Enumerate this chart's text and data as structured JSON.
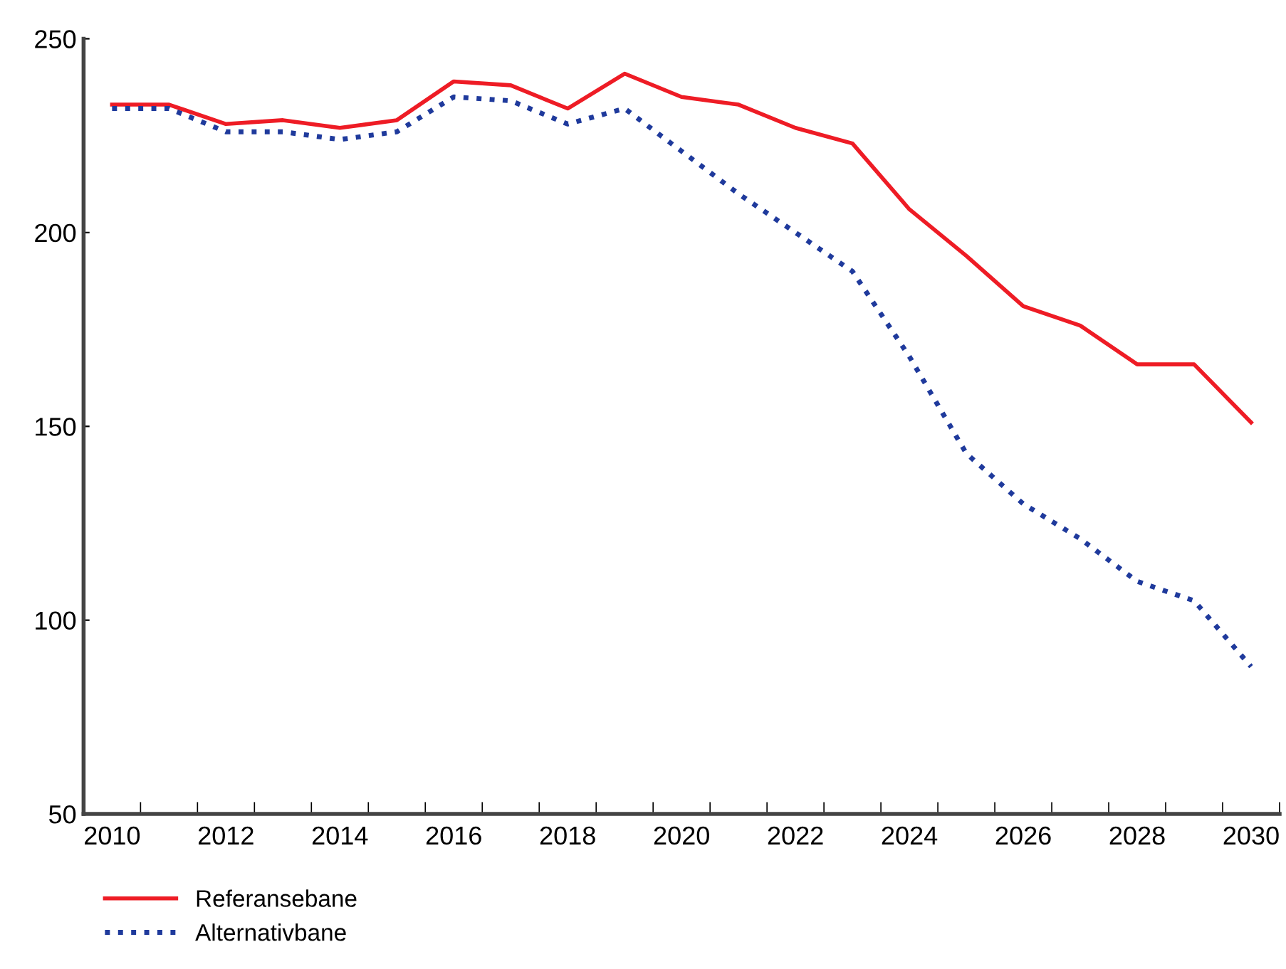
{
  "chart_data": {
    "type": "line",
    "categories": [
      "2010",
      null,
      "2012",
      null,
      "2014",
      null,
      "2016",
      null,
      "2018",
      null,
      "2020",
      null,
      "2022",
      null,
      "2024",
      null,
      "2026",
      null,
      "2028",
      null,
      "2030"
    ],
    "series": [
      {
        "name": "Referansebane",
        "color": "#ee1c25",
        "line_style": "solid",
        "values": [
          233,
          233,
          228,
          229,
          227,
          229,
          239,
          238,
          232,
          241,
          235,
          233,
          227,
          223,
          206,
          194,
          181,
          176,
          166,
          166,
          151
        ]
      },
      {
        "name": "Alternativbane",
        "color": "#1f3a9c",
        "line_style": "dotted",
        "values": [
          232,
          232,
          226,
          226,
          224,
          226,
          235,
          234,
          228,
          232,
          221,
          210,
          200,
          190,
          168,
          143,
          130,
          121,
          110,
          105,
          88
        ]
      }
    ],
    "ylim": [
      50,
      250
    ],
    "yticks": [
      50,
      100,
      150,
      200,
      250
    ],
    "grid": false,
    "legend": "bottom left",
    "marker": "none"
  }
}
